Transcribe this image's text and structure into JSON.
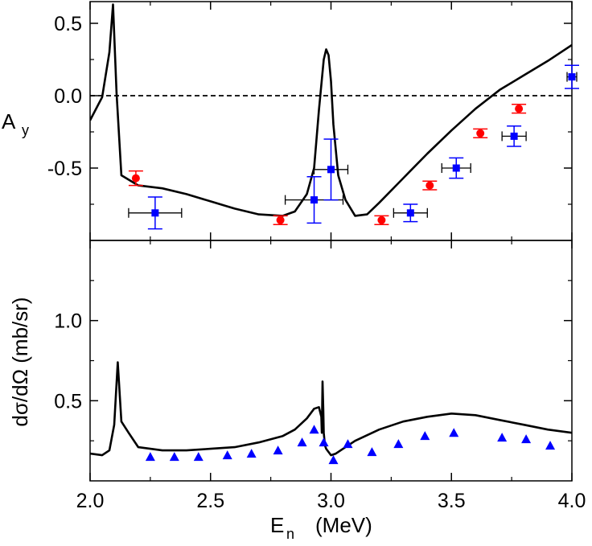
{
  "figure": {
    "x_axis": {
      "label_main": "E",
      "label_sub": "n",
      "label_unit": "(MeV)",
      "range": [
        2.0,
        4.0
      ],
      "ticks": [
        2.0,
        2.5,
        3.0,
        3.5,
        4.0
      ],
      "tick_labels": [
        "2.0",
        "2.5",
        "3.0",
        "3.5",
        "4.0"
      ]
    },
    "colors": {
      "axis": "#000000",
      "red": "#ff0000",
      "blue": "#0000ff",
      "curve": "#000000"
    }
  },
  "chart_data": [
    {
      "type": "line",
      "title": "",
      "ylabel_main": "A",
      "ylabel_sub": "y",
      "ylim": [
        -1.0,
        0.65
      ],
      "yticks": [
        0.5,
        0.0,
        -0.5
      ],
      "ytick_labels": [
        "0.5",
        "0.0",
        "-0.5"
      ],
      "reference_line": {
        "y": 0.0,
        "style": "dashed"
      },
      "theory_curve": {
        "x": [
          2.0,
          2.05,
          2.08,
          2.095,
          2.11,
          2.13,
          2.2,
          2.3,
          2.4,
          2.5,
          2.6,
          2.7,
          2.8,
          2.85,
          2.9,
          2.93,
          2.95,
          2.97,
          2.98,
          2.99,
          3.0,
          3.01,
          3.03,
          3.06,
          3.1,
          3.15,
          3.2,
          3.3,
          3.4,
          3.5,
          3.6,
          3.7,
          3.8,
          3.9,
          4.0
        ],
        "y": [
          -0.17,
          -0.01,
          0.3,
          0.63,
          0.02,
          -0.55,
          -0.62,
          -0.64,
          -0.68,
          -0.73,
          -0.78,
          -0.82,
          -0.83,
          -0.8,
          -0.68,
          -0.5,
          -0.1,
          0.25,
          0.32,
          0.28,
          0.1,
          -0.2,
          -0.55,
          -0.72,
          -0.83,
          -0.82,
          -0.74,
          -0.57,
          -0.4,
          -0.24,
          -0.09,
          0.04,
          0.14,
          0.24,
          0.35
        ]
      },
      "series": [
        {
          "name": "red circles",
          "marker": "circle",
          "color": "#ff0000",
          "points": [
            {
              "x": 2.19,
              "y": -0.57,
              "yerr": 0.05,
              "xerr": 0
            },
            {
              "x": 2.79,
              "y": -0.86,
              "yerr": 0.03,
              "xerr": 0
            },
            {
              "x": 3.21,
              "y": -0.86,
              "yerr": 0.03,
              "xerr": 0
            },
            {
              "x": 3.41,
              "y": -0.62,
              "yerr": 0.03,
              "xerr": 0
            },
            {
              "x": 3.62,
              "y": -0.26,
              "yerr": 0.03,
              "xerr": 0
            },
            {
              "x": 3.78,
              "y": -0.09,
              "yerr": 0.03,
              "xerr": 0
            }
          ]
        },
        {
          "name": "blue squares",
          "marker": "square",
          "color": "#0000ff",
          "points": [
            {
              "x": 2.27,
              "y": -0.81,
              "yerr": 0.11,
              "xerr": 0.11
            },
            {
              "x": 2.93,
              "y": -0.72,
              "yerr": 0.16,
              "xerr": 0.12
            },
            {
              "x": 3.0,
              "y": -0.51,
              "yerr": 0.21,
              "xerr": 0.07
            },
            {
              "x": 3.33,
              "y": -0.81,
              "yerr": 0.06,
              "xerr": 0.07
            },
            {
              "x": 3.52,
              "y": -0.5,
              "yerr": 0.07,
              "xerr": 0.06
            },
            {
              "x": 3.76,
              "y": -0.28,
              "yerr": 0.07,
              "xerr": 0.05
            },
            {
              "x": 4.0,
              "y": 0.13,
              "yerr": 0.08,
              "xerr": 0.02
            }
          ]
        }
      ]
    },
    {
      "type": "line",
      "title": "",
      "ylabel": "dσ/dΩ (mb/sr)",
      "ylim": [
        0.0,
        1.5
      ],
      "yticks": [
        1.0,
        0.5
      ],
      "ytick_labels": [
        "1.0",
        "0.5"
      ],
      "theory_curve": {
        "x": [
          2.0,
          2.05,
          2.08,
          2.1,
          2.115,
          2.13,
          2.16,
          2.2,
          2.3,
          2.4,
          2.5,
          2.6,
          2.7,
          2.8,
          2.85,
          2.9,
          2.93,
          2.95,
          2.96,
          2.962,
          2.965,
          2.968,
          2.97,
          2.975,
          2.98,
          3.0,
          3.02,
          3.05,
          3.1,
          3.2,
          3.3,
          3.4,
          3.5,
          3.6,
          3.7,
          3.8,
          3.9,
          4.0
        ],
        "y": [
          0.17,
          0.16,
          0.19,
          0.35,
          0.74,
          0.37,
          0.3,
          0.21,
          0.19,
          0.19,
          0.2,
          0.21,
          0.24,
          0.28,
          0.32,
          0.39,
          0.45,
          0.46,
          0.4,
          0.3,
          0.62,
          0.45,
          0.3,
          0.22,
          0.2,
          0.16,
          0.17,
          0.2,
          0.25,
          0.32,
          0.37,
          0.4,
          0.42,
          0.41,
          0.38,
          0.35,
          0.32,
          0.3
        ]
      },
      "series": [
        {
          "name": "blue triangles",
          "marker": "triangle",
          "color": "#0000ff",
          "points": [
            {
              "x": 2.25,
              "y": 0.15
            },
            {
              "x": 2.35,
              "y": 0.15
            },
            {
              "x": 2.45,
              "y": 0.15
            },
            {
              "x": 2.57,
              "y": 0.16
            },
            {
              "x": 2.67,
              "y": 0.17
            },
            {
              "x": 2.78,
              "y": 0.19
            },
            {
              "x": 2.88,
              "y": 0.24
            },
            {
              "x": 2.93,
              "y": 0.32
            },
            {
              "x": 2.97,
              "y": 0.24
            },
            {
              "x": 3.01,
              "y": 0.13
            },
            {
              "x": 3.07,
              "y": 0.23
            },
            {
              "x": 3.17,
              "y": 0.18
            },
            {
              "x": 3.28,
              "y": 0.23
            },
            {
              "x": 3.39,
              "y": 0.28
            },
            {
              "x": 3.51,
              "y": 0.3
            },
            {
              "x": 3.71,
              "y": 0.27
            },
            {
              "x": 3.81,
              "y": 0.26
            },
            {
              "x": 3.91,
              "y": 0.22
            }
          ]
        }
      ]
    }
  ]
}
